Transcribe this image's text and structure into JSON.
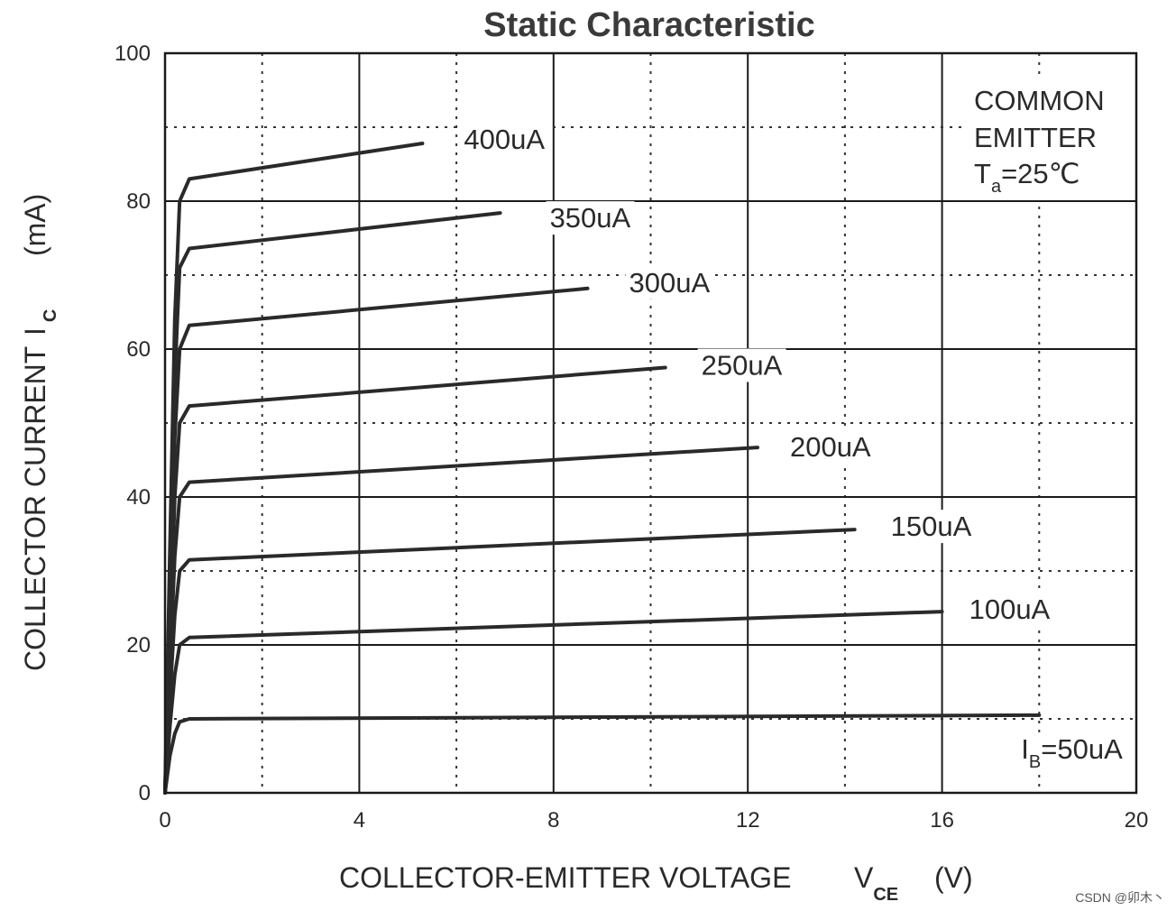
{
  "chart_data": {
    "type": "line",
    "title": "Static Characteristic",
    "xlabel": "COLLECTOR-EMITTER VOLTAGE",
    "xlabel_symbol": "V",
    "xlabel_subscript": "CE",
    "xlabel_unit": "(V)",
    "ylabel": "COLLECTOR CURRENT",
    "ylabel_symbol": "I",
    "ylabel_subscript": "C",
    "ylabel_unit": "(mA)",
    "xlim": [
      0,
      20
    ],
    "ylim": [
      0,
      100
    ],
    "x_ticks": [
      "0",
      "4",
      "8",
      "12",
      "16",
      "20"
    ],
    "y_ticks": [
      "0",
      "20",
      "40",
      "60",
      "80",
      "100"
    ],
    "grid": "solid major lines with dotted minor lines",
    "series": [
      {
        "name": "I",
        "label": "=50uA",
        "label_prefix_sub": "B",
        "x": [
          0,
          0.1,
          0.2,
          0.3,
          0.5,
          18
        ],
        "y": [
          0,
          5,
          8,
          9.6,
          10,
          10.5
        ]
      },
      {
        "name": "100uA",
        "label": "100uA",
        "x": [
          0,
          0.1,
          0.2,
          0.3,
          0.5,
          16
        ],
        "y": [
          0,
          9,
          16,
          20,
          21,
          24.5
        ]
      },
      {
        "name": "150uA",
        "label": "150uA",
        "x": [
          0,
          0.1,
          0.2,
          0.3,
          0.5,
          14.2
        ],
        "y": [
          0,
          13,
          24,
          30,
          31.5,
          35.6
        ]
      },
      {
        "name": "200uA",
        "label": "200uA",
        "x": [
          0,
          0.1,
          0.2,
          0.3,
          0.5,
          12.2
        ],
        "y": [
          0,
          17,
          32,
          40,
          42,
          46.7
        ]
      },
      {
        "name": "250uA",
        "label": "250uA",
        "x": [
          0,
          0.1,
          0.2,
          0.3,
          0.5,
          10.3
        ],
        "y": [
          0,
          21,
          40,
          50,
          52.3,
          57.5
        ]
      },
      {
        "name": "300uA",
        "label": "300uA",
        "x": [
          0,
          0.1,
          0.2,
          0.3,
          0.5,
          8.7
        ],
        "y": [
          0,
          25,
          48,
          60,
          63.2,
          68.2
        ]
      },
      {
        "name": "350uA",
        "label": "350uA",
        "x": [
          0,
          0.1,
          0.2,
          0.3,
          0.5,
          6.9
        ],
        "y": [
          0,
          29,
          56,
          71,
          73.6,
          78.4
        ]
      },
      {
        "name": "400uA",
        "label": "400uA",
        "x": [
          0,
          0.1,
          0.2,
          0.3,
          0.5,
          5.3
        ],
        "y": [
          0,
          33,
          64,
          80,
          83,
          87.8
        ]
      }
    ],
    "annotation": {
      "line1": "COMMON",
      "line2": "EMITTER",
      "line3_symbol": "T",
      "line3_subscript": "a",
      "line3_value": "=25℃"
    }
  },
  "watermark": "CSDN @卯木丶"
}
